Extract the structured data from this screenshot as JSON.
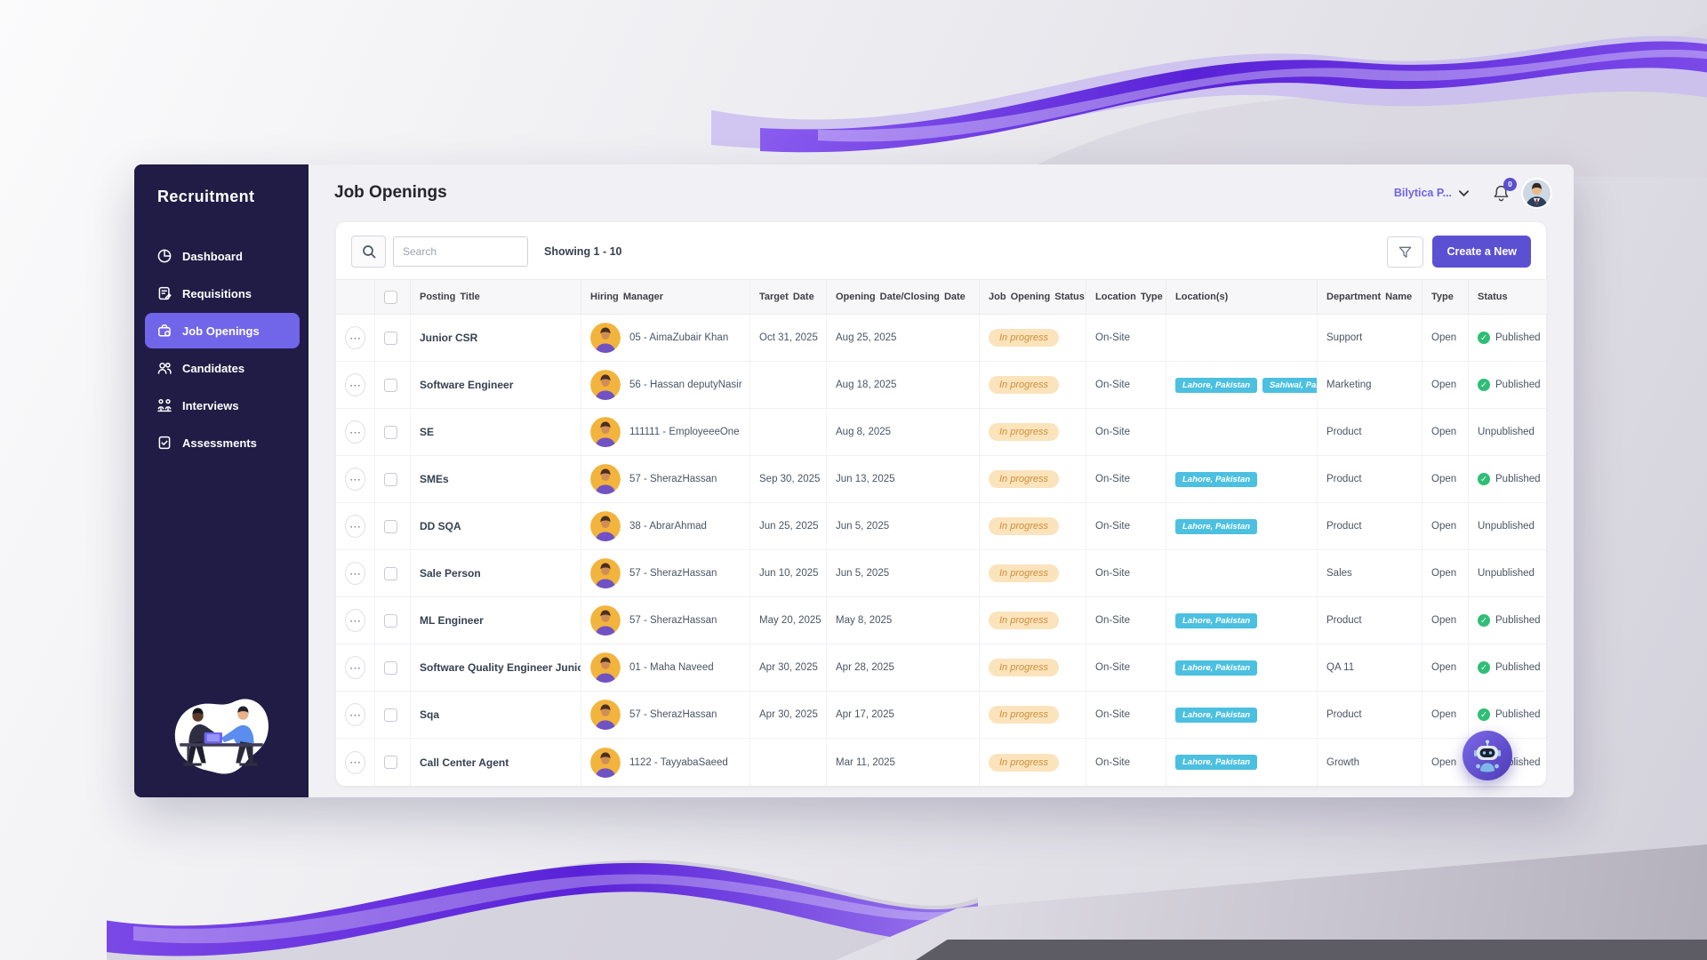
{
  "app": {
    "brand": "Recruitment",
    "page_title": "Job Openings",
    "user": {
      "name": "Bilytica P...",
      "notification_count": "0"
    }
  },
  "sidebar": {
    "items": [
      {
        "label": "Dashboard",
        "icon": "dashboard-icon",
        "active": false
      },
      {
        "label": "Requisitions",
        "icon": "requisitions-icon",
        "active": false
      },
      {
        "label": "Job Openings",
        "icon": "job-openings-icon",
        "active": true
      },
      {
        "label": "Candidates",
        "icon": "candidates-icon",
        "active": false
      },
      {
        "label": "Interviews",
        "icon": "interviews-icon",
        "active": false
      },
      {
        "label": "Assessments",
        "icon": "assessments-icon",
        "active": false
      }
    ]
  },
  "toolbar": {
    "search_placeholder": "Search",
    "showing_text": "Showing 1 - 10",
    "create_button_label": "Create a New"
  },
  "table": {
    "columns": [
      {
        "id": "actions",
        "label": ""
      },
      {
        "id": "select",
        "label": ""
      },
      {
        "id": "posting_title",
        "label": "Posting Title"
      },
      {
        "id": "hiring_manager",
        "label": "Hiring Manager"
      },
      {
        "id": "target_date",
        "label": "Target Date"
      },
      {
        "id": "opening_date",
        "label": "Opening Date/Closing Date"
      },
      {
        "id": "job_status",
        "label": "Job Opening Status"
      },
      {
        "id": "location_type",
        "label": "Location Type"
      },
      {
        "id": "locations",
        "label": "Location(s)"
      },
      {
        "id": "department",
        "label": "Department Name"
      },
      {
        "id": "type",
        "label": "Type"
      },
      {
        "id": "status",
        "label": "Status"
      }
    ],
    "rows": [
      {
        "posting_title": "Junior CSR",
        "hiring_manager": "05 - AimaZubair Khan",
        "target_date": "Oct 31, 2025",
        "opening_date": "Aug 25, 2025",
        "job_status": "In progress",
        "location_type": "On-Site",
        "locations": [],
        "department": "Support",
        "type": "Open",
        "status": "Published",
        "published": true
      },
      {
        "posting_title": "Software Engineer",
        "hiring_manager": "56 - Hassan deputyNasir",
        "target_date": "",
        "opening_date": "Aug 18, 2025",
        "job_status": "In progress",
        "location_type": "On-Site",
        "locations": [
          "Lahore, Pakistan",
          "Sahiwal, Pakistan"
        ],
        "department": "Marketing",
        "type": "Open",
        "status": "Published",
        "published": true
      },
      {
        "posting_title": "SE",
        "hiring_manager": "111111 - EmployeeeOne",
        "target_date": "",
        "opening_date": "Aug 8, 2025",
        "job_status": "In progress",
        "location_type": "On-Site",
        "locations": [],
        "department": "Product",
        "type": "Open",
        "status": "Unpublished",
        "published": false
      },
      {
        "posting_title": "SMEs",
        "hiring_manager": "57 - SherazHassan",
        "target_date": "Sep 30, 2025",
        "opening_date": "Jun 13, 2025",
        "job_status": "In progress",
        "location_type": "On-Site",
        "locations": [
          "Lahore, Pakistan"
        ],
        "department": "Product",
        "type": "Open",
        "status": "Published",
        "published": true
      },
      {
        "posting_title": "DD SQA",
        "hiring_manager": "38 - AbrarAhmad",
        "target_date": "Jun 25, 2025",
        "opening_date": "Jun 5, 2025",
        "job_status": "In progress",
        "location_type": "On-Site",
        "locations": [
          "Lahore, Pakistan"
        ],
        "department": "Product",
        "type": "Open",
        "status": "Unpublished",
        "published": false
      },
      {
        "posting_title": "Sale Person",
        "hiring_manager": "57 - SherazHassan",
        "target_date": "Jun 10, 2025",
        "opening_date": "Jun 5, 2025",
        "job_status": "In progress",
        "location_type": "On-Site",
        "locations": [],
        "department": "Sales",
        "type": "Open",
        "status": "Unpublished",
        "published": false
      },
      {
        "posting_title": "ML Engineer",
        "hiring_manager": "57 - SherazHassan",
        "target_date": "May 20, 2025",
        "opening_date": "May 8, 2025",
        "job_status": "In progress",
        "location_type": "On-Site",
        "locations": [
          "Lahore, Pakistan"
        ],
        "department": "Product",
        "type": "Open",
        "status": "Published",
        "published": true
      },
      {
        "posting_title": "Software Quality Engineer Junior",
        "hiring_manager": "01 - Maha Naveed",
        "target_date": "Apr 30, 2025",
        "opening_date": "Apr 28, 2025",
        "job_status": "In progress",
        "location_type": "On-Site",
        "locations": [
          "Lahore, Pakistan"
        ],
        "department": "QA 11",
        "type": "Open",
        "status": "Published",
        "published": true
      },
      {
        "posting_title": "Sqa",
        "hiring_manager": "57 - SherazHassan",
        "target_date": "Apr 30, 2025",
        "opening_date": "Apr 17, 2025",
        "job_status": "In progress",
        "location_type": "On-Site",
        "locations": [
          "Lahore, Pakistan"
        ],
        "department": "Product",
        "type": "Open",
        "status": "Published",
        "published": true
      },
      {
        "posting_title": "Call Center Agent",
        "hiring_manager": "1122 - TayyabaSaeed",
        "target_date": "",
        "opening_date": "Mar 11, 2025",
        "job_status": "In progress",
        "location_type": "On-Site",
        "locations": [
          "Lahore, Pakistan"
        ],
        "department": "Growth",
        "type": "Open",
        "status": "Published",
        "published": true
      }
    ]
  },
  "colors": {
    "accent_purple": "#5c50d2",
    "sidebar_bg": "#201c45",
    "active_item": "#7165ea",
    "pill_bg": "#fbe3bb",
    "pill_text": "#cc8f3d",
    "location_badge": "#4cc0e0",
    "published_green": "#2fbe76",
    "user_name_text": "#6f63e8"
  }
}
